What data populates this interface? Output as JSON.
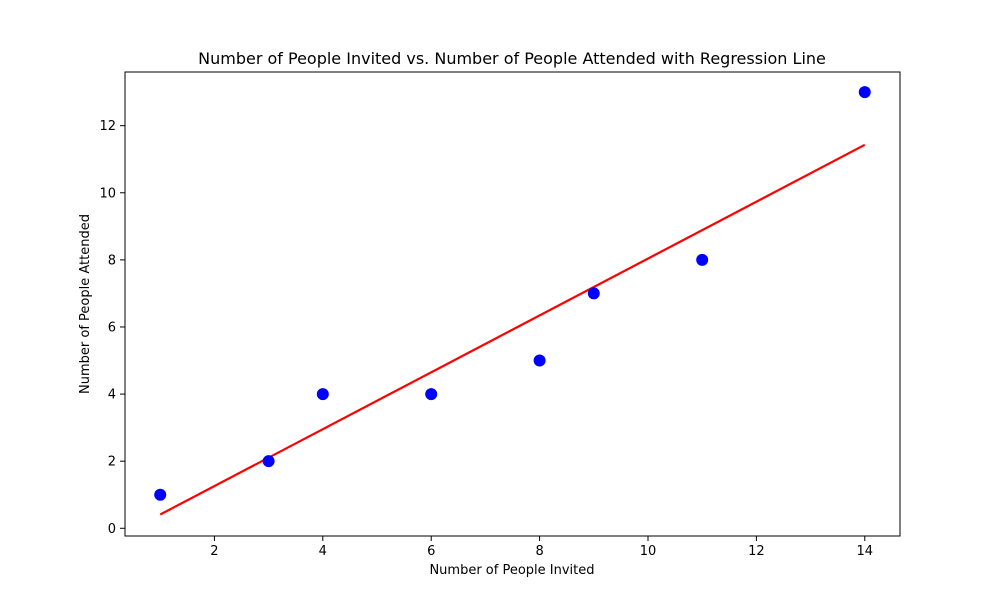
{
  "chart_data": {
    "type": "scatter",
    "title": "Number of People Invited vs. Number of People Attended with Regression Line",
    "xlabel": "Number of People Invited",
    "ylabel": "Number of People Attended",
    "xlim": [
      0.35,
      14.65
    ],
    "ylim": [
      -0.23,
      13.6
    ],
    "x_ticks": [
      2,
      4,
      6,
      8,
      10,
      12,
      14
    ],
    "y_ticks": [
      0,
      2,
      4,
      6,
      8,
      10,
      12
    ],
    "grid": false,
    "series": [
      {
        "type": "scatter",
        "color": "#0000ff",
        "x": [
          1,
          3,
          4,
          6,
          8,
          9,
          11,
          14
        ],
        "y": [
          1,
          2,
          4,
          4,
          5,
          7,
          8,
          13
        ]
      },
      {
        "type": "line",
        "color": "#ff0000",
        "x": [
          1,
          14
        ],
        "y": [
          0.41,
          11.43
        ]
      }
    ]
  }
}
